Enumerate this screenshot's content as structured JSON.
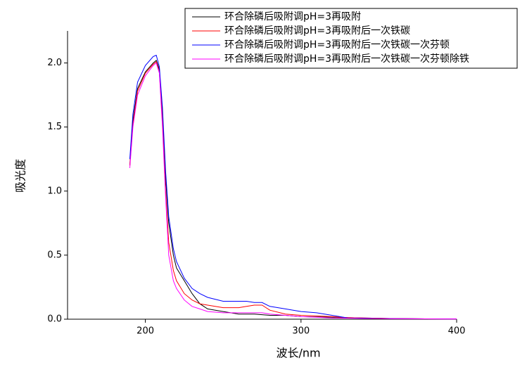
{
  "chart_data": {
    "type": "line",
    "x_label": "波长/nm",
    "y_label": "吸光度",
    "x": [
      190,
      192,
      195,
      200,
      205,
      207,
      209,
      211,
      213,
      215,
      218,
      220,
      225,
      230,
      235,
      240,
      250,
      260,
      265,
      270,
      275,
      280,
      290,
      300,
      310,
      320,
      330,
      340,
      360,
      380,
      400
    ],
    "series": [
      {
        "name": "环合除磷后吸附调pH=3再吸附",
        "color": "#000000",
        "values": [
          1.2,
          1.55,
          1.8,
          1.93,
          2.0,
          2.02,
          1.95,
          1.6,
          1.1,
          0.75,
          0.5,
          0.4,
          0.3,
          0.2,
          0.12,
          0.08,
          0.06,
          0.04,
          0.04,
          0.04,
          0.035,
          0.03,
          0.03,
          0.02,
          0.018,
          0.015,
          0.012,
          0.01,
          0.005,
          0.003,
          0.002
        ]
      },
      {
        "name": "环合除磷后吸附调pH=3再吸附后一次铁碳",
        "color": "#ff0000",
        "values": [
          1.2,
          1.52,
          1.78,
          1.92,
          1.99,
          2.01,
          1.93,
          1.55,
          1.0,
          0.6,
          0.38,
          0.3,
          0.2,
          0.15,
          0.12,
          0.11,
          0.09,
          0.09,
          0.1,
          0.11,
          0.11,
          0.07,
          0.04,
          0.03,
          0.025,
          0.02,
          0.012,
          0.01,
          0.005,
          0.003,
          0.002
        ]
      },
      {
        "name": "环合除磷后吸附调pH=3再吸附后一次铁碳一次芬顿",
        "color": "#0000ff",
        "values": [
          1.25,
          1.6,
          1.85,
          1.98,
          2.05,
          2.06,
          1.97,
          1.65,
          1.15,
          0.8,
          0.55,
          0.45,
          0.32,
          0.24,
          0.2,
          0.17,
          0.14,
          0.14,
          0.14,
          0.13,
          0.13,
          0.1,
          0.08,
          0.06,
          0.05,
          0.03,
          0.01,
          0.008,
          0.004,
          0.003,
          0.002
        ]
      },
      {
        "name": "环合除磷后吸附调pH=3再吸附后一次铁碳一次芬顿除铁",
        "color": "#ff00ff",
        "values": [
          1.18,
          1.5,
          1.75,
          1.9,
          1.98,
          2.0,
          1.92,
          1.5,
          0.95,
          0.5,
          0.3,
          0.24,
          0.15,
          0.1,
          0.08,
          0.06,
          0.05,
          0.05,
          0.05,
          0.05,
          0.05,
          0.04,
          0.03,
          0.02,
          0.015,
          0.01,
          0.008,
          0.006,
          0.004,
          0.003,
          0.002
        ]
      }
    ],
    "xlim": [
      150,
      400
    ],
    "xticks": [
      200,
      300,
      400
    ],
    "ylim": [
      0,
      2.25
    ],
    "yticks": [
      {
        "value": 0,
        "label": "0.0"
      },
      {
        "value": 0.5,
        "label": "0.5"
      },
      {
        "value": 1,
        "label": "1.0"
      },
      {
        "value": 1.5,
        "label": "1.5"
      },
      {
        "value": 2,
        "label": "2.0"
      }
    ],
    "legend": "top-right"
  }
}
